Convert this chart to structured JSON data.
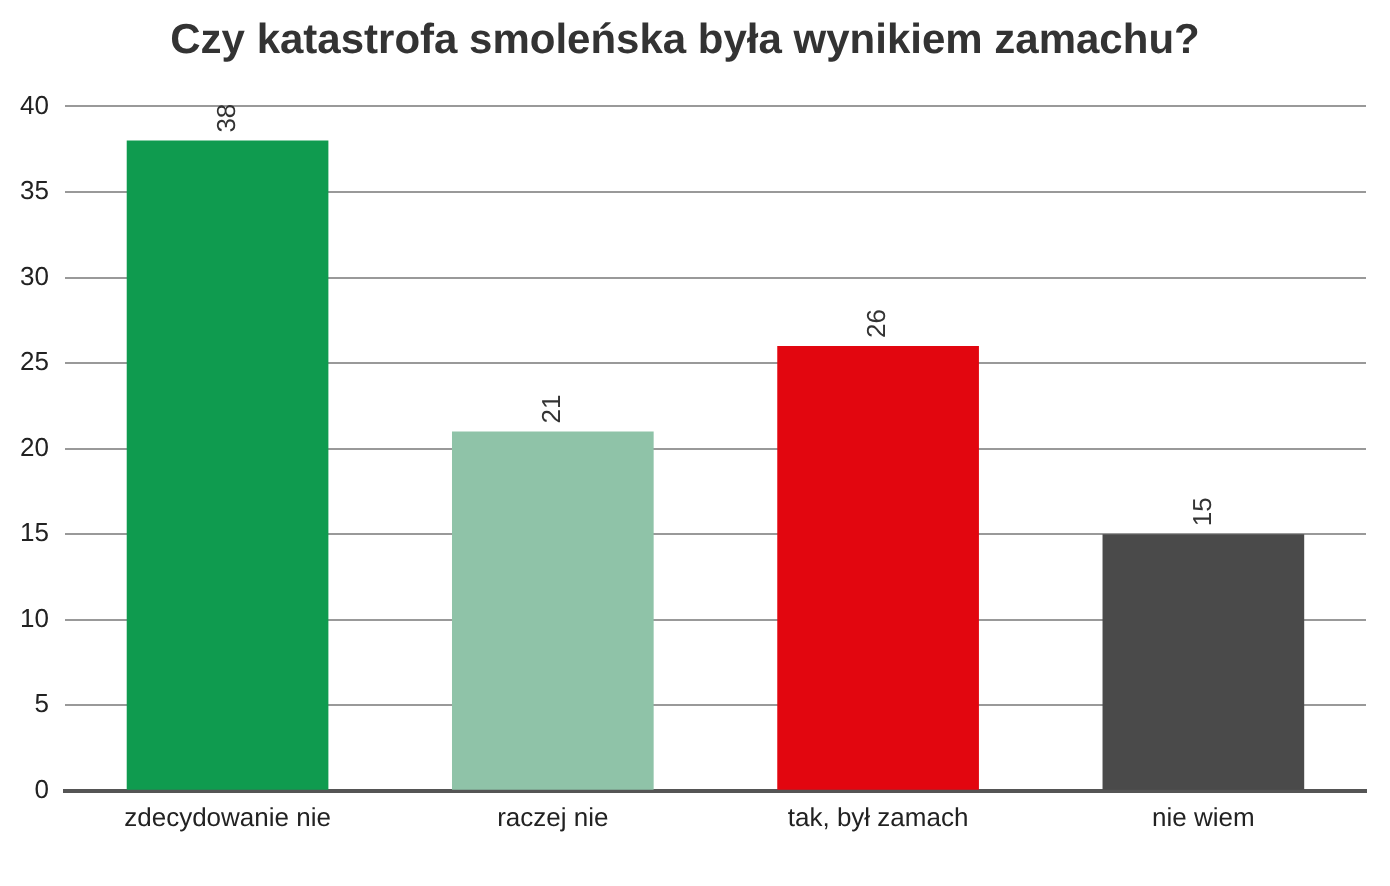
{
  "chart_data": {
    "type": "bar",
    "title": "Czy katastrofa smoleńska była wynikiem zamachu?",
    "categories": [
      "zdecydowanie nie",
      "raczej nie",
      "tak, był zamach",
      "nie wiem"
    ],
    "values": [
      38,
      21,
      26,
      15
    ],
    "colors": [
      "#0f9b4f",
      "#8fc3a8",
      "#e2060f",
      "#4a4a4a"
    ],
    "ylim": [
      0,
      40
    ],
    "yticks": [
      0,
      5,
      10,
      15,
      20,
      25,
      30,
      35,
      40
    ],
    "grid": "y",
    "data_labels": true,
    "legend": false
  }
}
